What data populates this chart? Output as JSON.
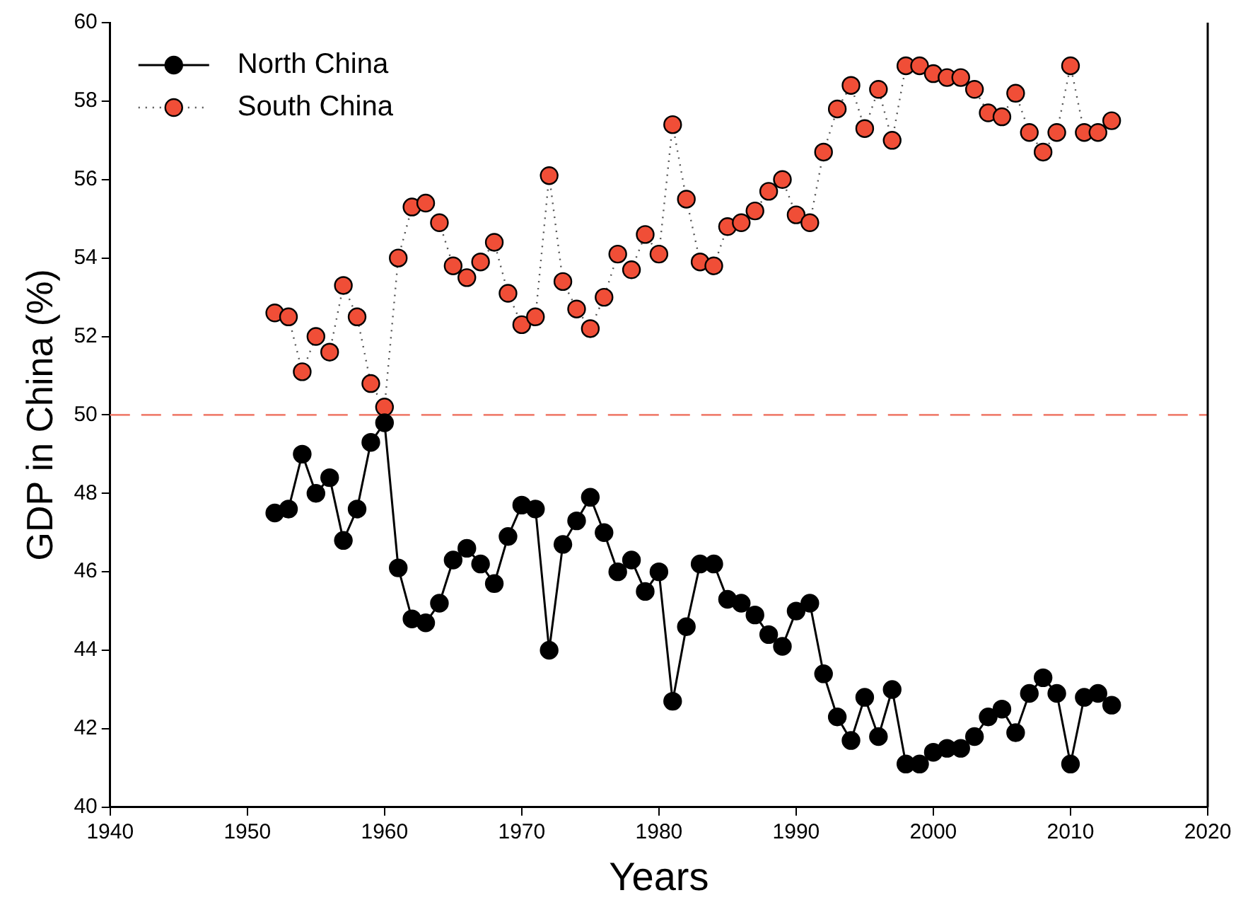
{
  "chart_data": {
    "type": "line",
    "xlabel": "Years",
    "ylabel": "GDP in China (%)",
    "x": [
      1952,
      1953,
      1954,
      1955,
      1956,
      1957,
      1958,
      1959,
      1960,
      1961,
      1962,
      1963,
      1964,
      1965,
      1966,
      1967,
      1968,
      1969,
      1970,
      1971,
      1972,
      1973,
      1974,
      1975,
      1976,
      1977,
      1978,
      1979,
      1980,
      1981,
      1982,
      1983,
      1984,
      1985,
      1986,
      1987,
      1988,
      1989,
      1990,
      1991,
      1992,
      1993,
      1994,
      1995,
      1996,
      1997,
      1998,
      1999,
      2000,
      2001,
      2002,
      2003,
      2004,
      2005,
      2006,
      2007,
      2008,
      2009,
      2010,
      2011,
      2012,
      2013
    ],
    "series": [
      {
        "name": "North China",
        "color": "#000000",
        "line_style": "solid",
        "values": [
          47.5,
          47.6,
          49.0,
          48.0,
          48.4,
          46.8,
          47.6,
          49.3,
          49.8,
          46.1,
          44.8,
          44.7,
          45.2,
          46.3,
          46.6,
          46.2,
          45.7,
          46.9,
          47.7,
          47.6,
          44.0,
          46.7,
          47.3,
          47.9,
          47.0,
          46.0,
          46.3,
          45.5,
          46.0,
          42.7,
          44.6,
          46.2,
          46.2,
          45.3,
          45.2,
          44.9,
          44.4,
          44.1,
          45.0,
          45.2,
          43.4,
          42.3,
          41.7,
          42.8,
          41.8,
          43.0,
          41.1,
          41.1,
          41.4,
          41.5,
          41.5,
          41.8,
          42.3,
          42.5,
          41.9,
          42.9,
          43.3,
          42.9,
          41.1,
          42.8,
          42.9,
          42.6
        ]
      },
      {
        "name": "South China",
        "color": "#f04e37",
        "line_style": "dotted",
        "values": [
          52.6,
          52.5,
          51.1,
          52.0,
          51.6,
          53.3,
          52.5,
          50.8,
          50.2,
          54.0,
          55.3,
          55.4,
          54.9,
          53.8,
          53.5,
          53.9,
          54.4,
          53.1,
          52.3,
          52.5,
          56.1,
          53.4,
          52.7,
          52.2,
          53.0,
          54.1,
          53.7,
          54.6,
          54.1,
          57.4,
          55.5,
          53.9,
          53.8,
          54.8,
          54.9,
          55.2,
          55.7,
          56.0,
          55.1,
          54.9,
          56.7,
          57.8,
          58.4,
          57.3,
          58.3,
          57.0,
          58.9,
          58.9,
          58.7,
          58.6,
          58.6,
          58.3,
          57.7,
          57.6,
          58.2,
          57.2,
          56.7,
          57.2,
          58.9,
          57.2,
          57.2,
          57.5
        ]
      }
    ],
    "xlim": [
      1940,
      2020
    ],
    "xticks": [
      1940,
      1950,
      1960,
      1970,
      1980,
      1990,
      2000,
      2010,
      2020
    ],
    "ylim": [
      40,
      60
    ],
    "yticks": [
      40,
      42,
      44,
      46,
      48,
      50,
      52,
      54,
      56,
      58,
      60
    ],
    "ref_lines": [
      {
        "axis": "y",
        "value": 50,
        "color": "#f08070",
        "line_style": "dashed"
      }
    ],
    "grid": false,
    "legend": "top left",
    "marker": "circle"
  }
}
